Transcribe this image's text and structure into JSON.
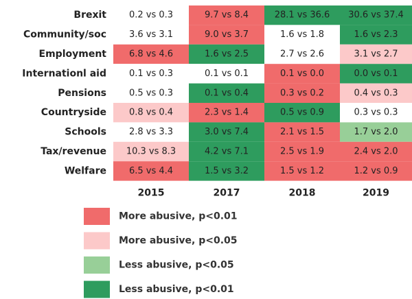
{
  "chart_data": {
    "type": "heatmap",
    "rows": [
      "Brexit",
      "Community/soc",
      "Employment",
      "Internationl aid",
      "Pensions",
      "Countryside",
      "Schools",
      "Tax/revenue",
      "Welfare"
    ],
    "columns": [
      "2015",
      "2017",
      "2018",
      "2019"
    ],
    "cells": [
      [
        {
          "text": "0.2 vs 0.3",
          "color": null
        },
        {
          "text": "9.7 vs 8.4",
          "color": "#f06b6b"
        },
        {
          "text": "28.1 vs 36.6",
          "color": "#2e9c5e"
        },
        {
          "text": "30.6 vs 37.4",
          "color": "#2e9c5e"
        }
      ],
      [
        {
          "text": "3.6 vs 3.1",
          "color": null
        },
        {
          "text": "9.0 vs 3.7",
          "color": "#f06b6b"
        },
        {
          "text": "1.6 vs 1.8",
          "color": null
        },
        {
          "text": "1.6 vs 2.3",
          "color": "#2e9c5e"
        }
      ],
      [
        {
          "text": "6.8 vs 4.6",
          "color": "#f06b6b"
        },
        {
          "text": "1.6 vs 2.5",
          "color": "#2e9c5e"
        },
        {
          "text": "2.7 vs 2.6",
          "color": null
        },
        {
          "text": "3.1 vs 2.7",
          "color": "#fcc9c9"
        }
      ],
      [
        {
          "text": "0.1 vs 0.3",
          "color": null
        },
        {
          "text": "0.1 vs 0.1",
          "color": null
        },
        {
          "text": "0.1 vs 0.0",
          "color": "#f06b6b"
        },
        {
          "text": "0.0 vs 0.1",
          "color": "#2e9c5e"
        }
      ],
      [
        {
          "text": "0.5 vs 0.3",
          "color": null
        },
        {
          "text": "0.1 vs 0.4",
          "color": "#2e9c5e"
        },
        {
          "text": "0.3 vs 0.2",
          "color": "#f06b6b"
        },
        {
          "text": "0.4 vs 0.3",
          "color": "#fcc9c9"
        }
      ],
      [
        {
          "text": "0.8 vs 0.4",
          "color": "#fcc9c9"
        },
        {
          "text": "2.3 vs 1.4",
          "color": "#f06b6b"
        },
        {
          "text": "0.5 vs 0.9",
          "color": "#2e9c5e"
        },
        {
          "text": "0.3 vs 0.3",
          "color": null
        }
      ],
      [
        {
          "text": "2.8 vs 3.3",
          "color": null
        },
        {
          "text": "3.0 vs 7.4",
          "color": "#2e9c5e"
        },
        {
          "text": "2.1 vs 1.5",
          "color": "#f06b6b"
        },
        {
          "text": "1.7 vs 2.0",
          "color": "#98cf98"
        }
      ],
      [
        {
          "text": "10.3 vs 8.3",
          "color": "#fcc9c9"
        },
        {
          "text": "4.2 vs 7.1",
          "color": "#2e9c5e"
        },
        {
          "text": "2.5 vs 1.9",
          "color": "#f06b6b"
        },
        {
          "text": "2.4 vs 2.0",
          "color": "#f06b6b"
        }
      ],
      [
        {
          "text": "6.5 vs 4.4",
          "color": "#f06b6b"
        },
        {
          "text": "1.5 vs 3.2",
          "color": "#2e9c5e"
        },
        {
          "text": "1.5 vs 1.2",
          "color": "#f06b6b"
        },
        {
          "text": "1.2 vs 0.9",
          "color": "#f06b6b"
        }
      ]
    ],
    "legend": [
      {
        "label": "More abusive, p<0.01",
        "color": "#f06b6b"
      },
      {
        "label": "More abusive, p<0.05",
        "color": "#fcc9c9"
      },
      {
        "label": "Less abusive, p<0.05",
        "color": "#98cf98"
      },
      {
        "label": "Less abusive, p<0.01",
        "color": "#2e9c5e"
      }
    ]
  }
}
